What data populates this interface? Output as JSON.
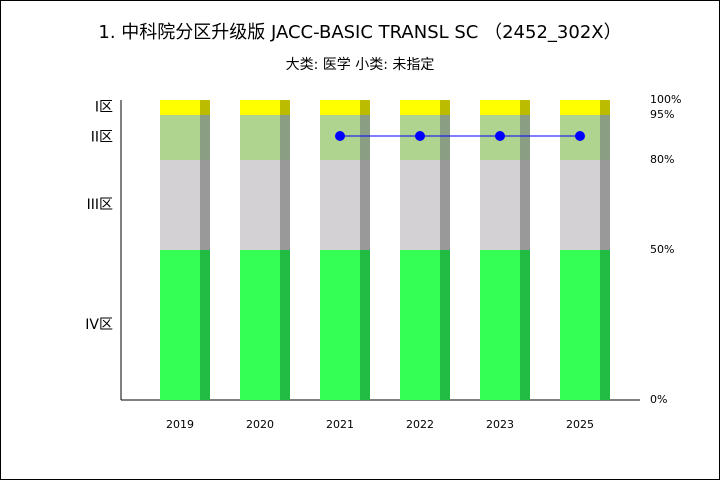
{
  "chart_data": {
    "type": "stacked-bar",
    "title": "1. 中科院分区升级版 JACC-BASIC TRANSL SC （2452_302X）",
    "subtitle": "大类: 医学 小类: 未指定",
    "categories": [
      "2019",
      "2020",
      "2021",
      "2022",
      "2023",
      "2025"
    ],
    "series": [
      {
        "name": "IV区",
        "color": "#33ff55",
        "side_color": "#22bb44",
        "values": [
          50,
          50,
          50,
          50,
          50,
          50
        ]
      },
      {
        "name": "III区",
        "color": "#d3d1d3",
        "side_color": "#999999",
        "values": [
          30,
          30,
          30,
          30,
          30,
          30
        ]
      },
      {
        "name": "II区",
        "color": "#aed490",
        "side_color": "#8a9e84",
        "values": [
          15,
          15,
          15,
          15,
          15,
          15
        ]
      },
      {
        "name": "I区",
        "color": "#ffff00",
        "side_color": "#bbbb00",
        "values": [
          5,
          5,
          5,
          5,
          5,
          5
        ]
      }
    ],
    "line": {
      "color": "#0000ff",
      "values": [
        null,
        null,
        88,
        88,
        88,
        88
      ]
    },
    "ylim": [
      0,
      100
    ],
    "yticks": [
      {
        "value": 0,
        "label": "0%"
      },
      {
        "value": 50,
        "label": "50%"
      },
      {
        "value": 80,
        "label": "80%"
      },
      {
        "value": 95,
        "label": "95%"
      },
      {
        "value": 100,
        "label": "100%"
      }
    ]
  }
}
